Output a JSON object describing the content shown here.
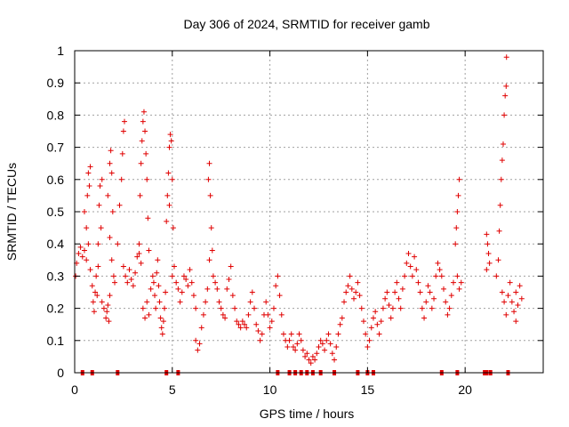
{
  "colors": {
    "series": "#e00000",
    "axis": "#000000",
    "grid": "#a0a0a0",
    "background": "#ffffff"
  },
  "chart_data": {
    "type": "scatter",
    "title": "Day 306 of 2024, SRMTID for receiver gamb",
    "xlabel": "GPS time / hours",
    "ylabel": "SRMTID / TECUs",
    "xlim": [
      0,
      24
    ],
    "ylim": [
      0,
      1
    ],
    "grid": true,
    "marker": "plus",
    "xticks": [
      {
        "v": 0,
        "label": "0"
      },
      {
        "v": 5,
        "label": "5"
      },
      {
        "v": 10,
        "label": "10"
      },
      {
        "v": 15,
        "label": "15"
      },
      {
        "v": 20,
        "label": "20"
      }
    ],
    "yticks": [
      {
        "v": 0,
        "label": "0"
      },
      {
        "v": 0.1,
        "label": "0.1"
      },
      {
        "v": 0.2,
        "label": "0.2"
      },
      {
        "v": 0.3,
        "label": "0.3"
      },
      {
        "v": 0.4,
        "label": "0.4"
      },
      {
        "v": 0.5,
        "label": "0.5"
      },
      {
        "v": 0.6,
        "label": "0.6"
      },
      {
        "v": 0.7,
        "label": "0.7"
      },
      {
        "v": 0.8,
        "label": "0.8"
      },
      {
        "v": 0.9,
        "label": "0.9"
      },
      {
        "v": 1,
        "label": "1"
      }
    ],
    "series": [
      {
        "name": "SRMTID",
        "points": [
          [
            0.05,
            0.3
          ],
          [
            0.1,
            0.34
          ],
          [
            0.2,
            0.37
          ],
          [
            0.3,
            0.39
          ],
          [
            0.4,
            0.36
          ],
          [
            0.5,
            0.38
          ],
          [
            0.6,
            0.35
          ],
          [
            0.7,
            0.4
          ],
          [
            0.5,
            0.5
          ],
          [
            0.6,
            0.45
          ],
          [
            0.65,
            0.55
          ],
          [
            0.7,
            0.62
          ],
          [
            0.75,
            0.58
          ],
          [
            0.8,
            0.64
          ],
          [
            0.8,
            0.32
          ],
          [
            0.9,
            0.27
          ],
          [
            0.95,
            0.22
          ],
          [
            1.0,
            0.19
          ],
          [
            1.05,
            0.25
          ],
          [
            1.1,
            0.3
          ],
          [
            1.15,
            0.24
          ],
          [
            1.2,
            0.33
          ],
          [
            1.25,
            0.52
          ],
          [
            1.3,
            0.58
          ],
          [
            1.35,
            0.45
          ],
          [
            1.4,
            0.6
          ],
          [
            1.2,
            0.4
          ],
          [
            1.4,
            0.22
          ],
          [
            1.5,
            0.2
          ],
          [
            1.6,
            0.17
          ],
          [
            1.7,
            0.21
          ],
          [
            1.8,
            0.24
          ],
          [
            1.65,
            0.19
          ],
          [
            1.75,
            0.16
          ],
          [
            1.7,
            0.55
          ],
          [
            1.8,
            0.65
          ],
          [
            1.85,
            0.69
          ],
          [
            1.9,
            0.62
          ],
          [
            1.95,
            0.5
          ],
          [
            1.8,
            0.42
          ],
          [
            1.9,
            0.35
          ],
          [
            2.0,
            0.3
          ],
          [
            2.05,
            0.28
          ],
          [
            2.2,
            0.4
          ],
          [
            2.3,
            0.52
          ],
          [
            2.4,
            0.6
          ],
          [
            2.5,
            0.75
          ],
          [
            2.55,
            0.78
          ],
          [
            2.45,
            0.68
          ],
          [
            2.5,
            0.33
          ],
          [
            2.6,
            0.3
          ],
          [
            2.7,
            0.28
          ],
          [
            2.8,
            0.32
          ],
          [
            2.9,
            0.29
          ],
          [
            3.0,
            0.27
          ],
          [
            3.1,
            0.31
          ],
          [
            3.2,
            0.36
          ],
          [
            3.3,
            0.4
          ],
          [
            3.35,
            0.55
          ],
          [
            3.4,
            0.65
          ],
          [
            3.45,
            0.72
          ],
          [
            3.5,
            0.78
          ],
          [
            3.55,
            0.81
          ],
          [
            3.6,
            0.75
          ],
          [
            3.65,
            0.68
          ],
          [
            3.7,
            0.6
          ],
          [
            3.75,
            0.48
          ],
          [
            3.8,
            0.38
          ],
          [
            3.3,
            0.37
          ],
          [
            3.4,
            0.34
          ],
          [
            3.5,
            0.2
          ],
          [
            3.6,
            0.17
          ],
          [
            3.7,
            0.22
          ],
          [
            3.8,
            0.18
          ],
          [
            3.9,
            0.26
          ],
          [
            4.0,
            0.3
          ],
          [
            4.05,
            0.28
          ],
          [
            4.1,
            0.24
          ],
          [
            4.15,
            0.2
          ],
          [
            4.2,
            0.31
          ],
          [
            4.25,
            0.35
          ],
          [
            4.3,
            0.27
          ],
          [
            4.35,
            0.22
          ],
          [
            4.4,
            0.17
          ],
          [
            4.45,
            0.14
          ],
          [
            4.5,
            0.12
          ],
          [
            4.55,
            0.16
          ],
          [
            4.6,
            0.2
          ],
          [
            4.65,
            0.25
          ],
          [
            4.7,
            0.47
          ],
          [
            4.75,
            0.55
          ],
          [
            4.8,
            0.62
          ],
          [
            4.85,
            0.7
          ],
          [
            4.9,
            0.74
          ],
          [
            4.95,
            0.72
          ],
          [
            5.0,
            0.6
          ],
          [
            5.05,
            0.45
          ],
          [
            4.85,
            0.52
          ],
          [
            5.0,
            0.3
          ],
          [
            5.1,
            0.33
          ],
          [
            5.2,
            0.28
          ],
          [
            5.3,
            0.26
          ],
          [
            5.4,
            0.22
          ],
          [
            5.5,
            0.25
          ],
          [
            5.6,
            0.3
          ],
          [
            5.7,
            0.29
          ],
          [
            5.8,
            0.27
          ],
          [
            5.9,
            0.32
          ],
          [
            6.0,
            0.28
          ],
          [
            6.1,
            0.24
          ],
          [
            6.2,
            0.2
          ],
          [
            6.2,
            0.1
          ],
          [
            6.3,
            0.07
          ],
          [
            6.4,
            0.09
          ],
          [
            6.5,
            0.14
          ],
          [
            6.6,
            0.18
          ],
          [
            6.7,
            0.22
          ],
          [
            6.8,
            0.26
          ],
          [
            6.85,
            0.6
          ],
          [
            6.9,
            0.65
          ],
          [
            6.95,
            0.55
          ],
          [
            7.0,
            0.45
          ],
          [
            7.05,
            0.38
          ],
          [
            6.9,
            0.35
          ],
          [
            7.1,
            0.3
          ],
          [
            7.2,
            0.28
          ],
          [
            7.3,
            0.26
          ],
          [
            7.4,
            0.22
          ],
          [
            7.5,
            0.2
          ],
          [
            7.6,
            0.18
          ],
          [
            7.7,
            0.17
          ],
          [
            7.8,
            0.26
          ],
          [
            7.9,
            0.29
          ],
          [
            8.0,
            0.33
          ],
          [
            8.1,
            0.24
          ],
          [
            8.2,
            0.2
          ],
          [
            8.3,
            0.16
          ],
          [
            8.4,
            0.15
          ],
          [
            8.5,
            0.14
          ],
          [
            8.6,
            0.16
          ],
          [
            8.7,
            0.15
          ],
          [
            8.8,
            0.14
          ],
          [
            8.9,
            0.18
          ],
          [
            9.0,
            0.22
          ],
          [
            9.1,
            0.25
          ],
          [
            9.2,
            0.2
          ],
          [
            9.3,
            0.15
          ],
          [
            9.4,
            0.13
          ],
          [
            9.5,
            0.1
          ],
          [
            9.6,
            0.12
          ],
          [
            9.7,
            0.18
          ],
          [
            9.8,
            0.22
          ],
          [
            9.9,
            0.18
          ],
          [
            10.0,
            0.14
          ],
          [
            10.1,
            0.16
          ],
          [
            10.2,
            0.2
          ],
          [
            10.3,
            0.27
          ],
          [
            10.4,
            0.3
          ],
          [
            10.5,
            0.24
          ],
          [
            10.6,
            0.18
          ],
          [
            10.7,
            0.12
          ],
          [
            10.8,
            0.1
          ],
          [
            10.9,
            0.08
          ],
          [
            11.0,
            0.1
          ],
          [
            11.1,
            0.12
          ],
          [
            11.2,
            0.08
          ],
          [
            11.3,
            0.07
          ],
          [
            11.4,
            0.09
          ],
          [
            11.5,
            0.12
          ],
          [
            11.6,
            0.1
          ],
          [
            11.7,
            0.07
          ],
          [
            11.8,
            0.05
          ],
          [
            11.9,
            0.06
          ],
          [
            12.0,
            0.04
          ],
          [
            12.1,
            0.03
          ],
          [
            12.2,
            0.05
          ],
          [
            12.3,
            0.04
          ],
          [
            12.4,
            0.06
          ],
          [
            12.5,
            0.08
          ],
          [
            12.6,
            0.1
          ],
          [
            12.7,
            0.09
          ],
          [
            12.8,
            0.07
          ],
          [
            12.9,
            0.1
          ],
          [
            13.0,
            0.12
          ],
          [
            13.1,
            0.09
          ],
          [
            13.2,
            0.06
          ],
          [
            13.3,
            0.04
          ],
          [
            13.4,
            0.08
          ],
          [
            13.5,
            0.12
          ],
          [
            13.6,
            0.15
          ],
          [
            13.7,
            0.17
          ],
          [
            13.8,
            0.22
          ],
          [
            13.9,
            0.25
          ],
          [
            14.0,
            0.27
          ],
          [
            14.1,
            0.3
          ],
          [
            14.2,
            0.26
          ],
          [
            14.3,
            0.23
          ],
          [
            14.4,
            0.25
          ],
          [
            14.5,
            0.28
          ],
          [
            14.6,
            0.24
          ],
          [
            14.7,
            0.2
          ],
          [
            14.8,
            0.16
          ],
          [
            14.9,
            0.12
          ],
          [
            15.0,
            0.08
          ],
          [
            15.1,
            0.1
          ],
          [
            15.2,
            0.14
          ],
          [
            15.3,
            0.17
          ],
          [
            15.4,
            0.19
          ],
          [
            15.5,
            0.15
          ],
          [
            15.6,
            0.12
          ],
          [
            15.7,
            0.16
          ],
          [
            15.8,
            0.2
          ],
          [
            15.9,
            0.23
          ],
          [
            16.0,
            0.25
          ],
          [
            16.1,
            0.21
          ],
          [
            16.2,
            0.17
          ],
          [
            16.3,
            0.2
          ],
          [
            16.4,
            0.25
          ],
          [
            16.5,
            0.28
          ],
          [
            16.6,
            0.23
          ],
          [
            16.7,
            0.2
          ],
          [
            16.8,
            0.26
          ],
          [
            16.9,
            0.3
          ],
          [
            17.0,
            0.34
          ],
          [
            17.1,
            0.37
          ],
          [
            17.2,
            0.33
          ],
          [
            17.3,
            0.3
          ],
          [
            17.4,
            0.36
          ],
          [
            17.5,
            0.32
          ],
          [
            17.6,
            0.28
          ],
          [
            17.7,
            0.25
          ],
          [
            17.8,
            0.2
          ],
          [
            17.9,
            0.17
          ],
          [
            18.0,
            0.22
          ],
          [
            18.1,
            0.27
          ],
          [
            18.2,
            0.25
          ],
          [
            18.3,
            0.2
          ],
          [
            18.4,
            0.23
          ],
          [
            18.5,
            0.3
          ],
          [
            18.6,
            0.34
          ],
          [
            18.7,
            0.32
          ],
          [
            18.8,
            0.3
          ],
          [
            18.9,
            0.26
          ],
          [
            19.0,
            0.22
          ],
          [
            19.1,
            0.18
          ],
          [
            19.2,
            0.2
          ],
          [
            19.3,
            0.24
          ],
          [
            19.4,
            0.28
          ],
          [
            19.5,
            0.4
          ],
          [
            19.55,
            0.45
          ],
          [
            19.6,
            0.5
          ],
          [
            19.65,
            0.55
          ],
          [
            19.7,
            0.6
          ],
          [
            19.6,
            0.3
          ],
          [
            19.7,
            0.26
          ],
          [
            19.8,
            0.28
          ],
          [
            21.1,
            0.43
          ],
          [
            21.15,
            0.4
          ],
          [
            21.2,
            0.37
          ],
          [
            21.25,
            0.34
          ],
          [
            21.1,
            0.32
          ],
          [
            21.6,
            0.3
          ],
          [
            21.7,
            0.35
          ],
          [
            21.75,
            0.44
          ],
          [
            21.8,
            0.52
          ],
          [
            21.85,
            0.6
          ],
          [
            21.9,
            0.66
          ],
          [
            21.95,
            0.71
          ],
          [
            22.0,
            0.8
          ],
          [
            22.05,
            0.86
          ],
          [
            22.1,
            0.89
          ],
          [
            22.12,
            0.98
          ],
          [
            21.9,
            0.25
          ],
          [
            22.0,
            0.22
          ],
          [
            22.1,
            0.18
          ],
          [
            22.2,
            0.24
          ],
          [
            22.3,
            0.28
          ],
          [
            22.4,
            0.22
          ],
          [
            22.5,
            0.19
          ],
          [
            22.6,
            0.25
          ],
          [
            22.7,
            0.21
          ],
          [
            22.8,
            0.27
          ],
          [
            22.9,
            0.23
          ],
          [
            22.6,
            0.16
          ]
        ]
      }
    ],
    "zero_markers": [
      0.4,
      0.9,
      2.2,
      4.7,
      5.3,
      10.4,
      11.0,
      11.3,
      11.6,
      11.9,
      12.2,
      12.6,
      13.3,
      14.5,
      15.0,
      15.3,
      18.8,
      19.6,
      21.0,
      21.1,
      21.3,
      22.2
    ]
  }
}
